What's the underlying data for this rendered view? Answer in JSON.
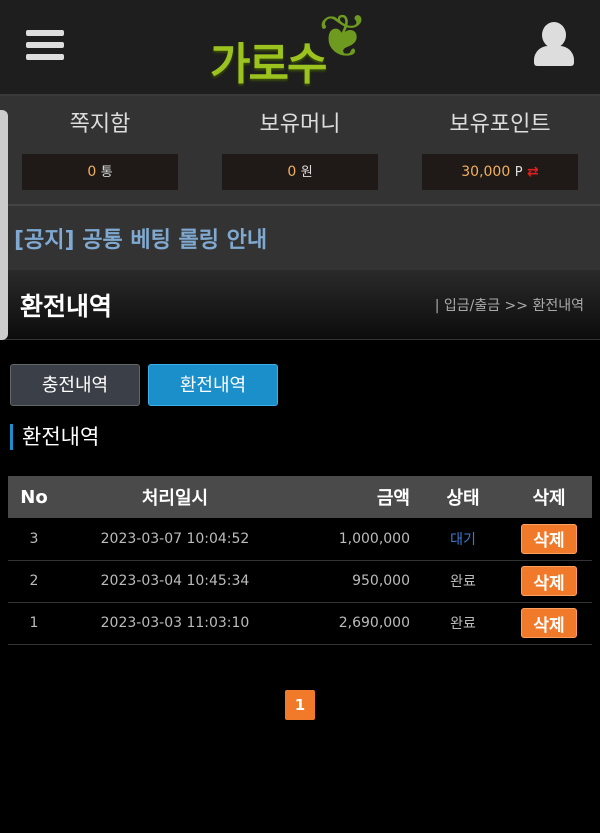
{
  "header": {
    "logo": "가로수",
    "menu_icon": "hamburger-icon",
    "user_icon": "user-icon"
  },
  "stats": [
    {
      "label": "쪽지함",
      "value": "0",
      "unit": "통"
    },
    {
      "label": "보유머니",
      "value": "0",
      "unit": "원"
    },
    {
      "label": "보유포인트",
      "value": "30,000",
      "unit": "P",
      "icon": "⇄"
    }
  ],
  "notice": "[공지] 공통 베팅 롤링 안내",
  "page": {
    "title": "환전내역",
    "breadcrumb": "| 입금/출금 >> 환전내역"
  },
  "tabs": [
    {
      "label": "충전내역",
      "active": false
    },
    {
      "label": "환전내역",
      "active": true
    }
  ],
  "section_title": "환전내역",
  "table": {
    "headers": [
      "No",
      "처리일시",
      "금액",
      "상태",
      "삭제"
    ],
    "rows": [
      {
        "no": "3",
        "date": "2023-03-07 10:04:52",
        "amount": "1,000,000",
        "status": "대기",
        "action": "삭제"
      },
      {
        "no": "2",
        "date": "2023-03-04 10:45:34",
        "amount": "950,000",
        "status": "완료",
        "action": "삭제"
      },
      {
        "no": "1",
        "date": "2023-03-03 11:03:10",
        "amount": "2,690,000",
        "status": "완료",
        "action": "삭제"
      }
    ]
  },
  "pagination": {
    "current": "1"
  },
  "colors": {
    "accent": "#1a8fc9",
    "button": "#f07a2a",
    "logo": "#9bc21e",
    "pending": "#3a7bd0"
  }
}
